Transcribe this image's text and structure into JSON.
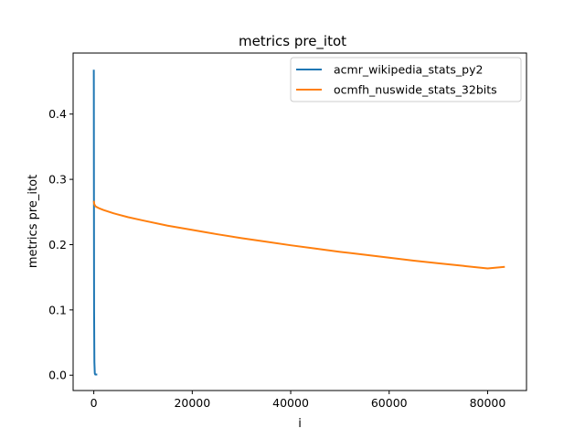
{
  "chart_data": {
    "type": "line",
    "title": "metrics pre_itot",
    "xlabel": "i",
    "ylabel": "metrics pre_itot",
    "xlim": [
      -4200,
      87900
    ],
    "ylim": [
      -0.0235,
      0.4935
    ],
    "xticks": [
      0,
      20000,
      40000,
      60000,
      80000
    ],
    "xtick_labels": [
      "0",
      "20000",
      "40000",
      "60000",
      "80000"
    ],
    "yticks": [
      0.0,
      0.1,
      0.2,
      0.3,
      0.4
    ],
    "ytick_labels": [
      "0.0",
      "0.1",
      "0.2",
      "0.3",
      "0.4"
    ],
    "grid": false,
    "legend_position": "top-right",
    "series": [
      {
        "name": "acmr_wikipedia_stats_py2",
        "color": "#1f77b4",
        "x": [
          0,
          10,
          25,
          60,
          120,
          200,
          300,
          500,
          700
        ],
        "y": [
          0.468,
          0.44,
          0.3,
          0.1,
          0.02,
          0.003,
          0.001,
          0.001,
          0.001
        ]
      },
      {
        "name": "ocmfh_nuswide_stats_32bits",
        "color": "#ff7f0e",
        "x": [
          0,
          100,
          300,
          600,
          1000,
          2000,
          4000,
          7000,
          10000,
          15000,
          20000,
          25000,
          30000,
          35000,
          40000,
          45000,
          50000,
          55000,
          60000,
          65000,
          70000,
          75000,
          80000,
          83500
        ],
        "y": [
          0.267,
          0.262,
          0.259,
          0.2575,
          0.256,
          0.253,
          0.248,
          0.242,
          0.237,
          0.229,
          0.2225,
          0.216,
          0.21,
          0.2045,
          0.199,
          0.194,
          0.189,
          0.1845,
          0.18,
          0.1755,
          0.1715,
          0.1675,
          0.1635,
          0.166
        ]
      }
    ]
  }
}
